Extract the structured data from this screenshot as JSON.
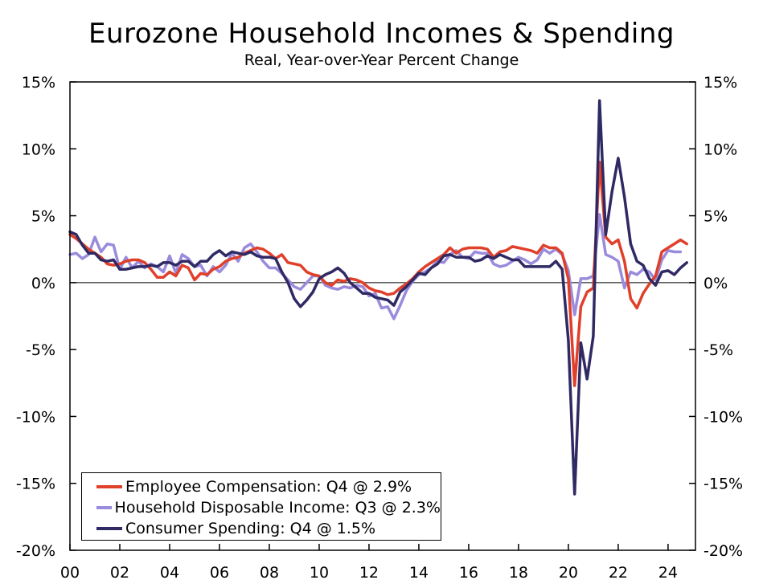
{
  "chart_data": {
    "type": "line",
    "title": "Eurozone Household Incomes & Spending",
    "subtitle": "Real, Year-over-Year Percent Change",
    "xlabel": "",
    "ylabel": "",
    "xlim": [
      2000,
      2025.1
    ],
    "ylim": [
      -20,
      15
    ],
    "y_ticks": [
      15,
      10,
      5,
      0,
      -5,
      -10,
      -15,
      -20
    ],
    "y_tick_labels": [
      "15%",
      "10%",
      "5%",
      "0%",
      "-5%",
      "-10%",
      "-15%",
      "-20%"
    ],
    "x_ticks": [
      2000,
      2002,
      2004,
      2006,
      2008,
      2010,
      2012,
      2014,
      2016,
      2018,
      2020,
      2022,
      2024
    ],
    "x_tick_labels": [
      "00",
      "02",
      "04",
      "06",
      "08",
      "10",
      "12",
      "14",
      "16",
      "18",
      "20",
      "22",
      "24"
    ],
    "legend_position": "bottom-left",
    "series": [
      {
        "name": "Employee Compensation",
        "legend_label": "Employee Compensation: Q4 @ 2.9%",
        "color": "#e0402a",
        "points": [
          [
            2000.0,
            3.6
          ],
          [
            2000.25,
            3.3
          ],
          [
            2000.5,
            2.9
          ],
          [
            2000.75,
            2.5
          ],
          [
            2001.0,
            2.2
          ],
          [
            2001.25,
            1.9
          ],
          [
            2001.5,
            1.4
          ],
          [
            2001.75,
            1.3
          ],
          [
            2002.0,
            1.4
          ],
          [
            2002.25,
            1.6
          ],
          [
            2002.5,
            1.7
          ],
          [
            2002.75,
            1.7
          ],
          [
            2003.0,
            1.5
          ],
          [
            2003.25,
            1.0
          ],
          [
            2003.5,
            0.4
          ],
          [
            2003.75,
            0.4
          ],
          [
            2004.0,
            0.8
          ],
          [
            2004.25,
            0.5
          ],
          [
            2004.5,
            1.3
          ],
          [
            2004.75,
            1.1
          ],
          [
            2005.0,
            0.2
          ],
          [
            2005.25,
            0.7
          ],
          [
            2005.5,
            0.6
          ],
          [
            2005.75,
            1.0
          ],
          [
            2006.0,
            1.2
          ],
          [
            2006.25,
            1.6
          ],
          [
            2006.5,
            1.8
          ],
          [
            2006.75,
            1.9
          ],
          [
            2007.0,
            2.2
          ],
          [
            2007.25,
            2.4
          ],
          [
            2007.5,
            2.6
          ],
          [
            2007.75,
            2.5
          ],
          [
            2008.0,
            2.2
          ],
          [
            2008.25,
            1.8
          ],
          [
            2008.5,
            2.1
          ],
          [
            2008.75,
            1.5
          ],
          [
            2009.0,
            1.4
          ],
          [
            2009.25,
            1.3
          ],
          [
            2009.5,
            0.8
          ],
          [
            2009.75,
            0.6
          ],
          [
            2010.0,
            0.5
          ],
          [
            2010.25,
            0.0
          ],
          [
            2010.5,
            -0.2
          ],
          [
            2010.75,
            0.2
          ],
          [
            2011.0,
            0.1
          ],
          [
            2011.25,
            0.3
          ],
          [
            2011.5,
            0.2
          ],
          [
            2011.75,
            0.0
          ],
          [
            2012.0,
            -0.4
          ],
          [
            2012.25,
            -0.6
          ],
          [
            2012.5,
            -0.7
          ],
          [
            2012.75,
            -0.9
          ],
          [
            2013.0,
            -0.8
          ],
          [
            2013.25,
            -0.4
          ],
          [
            2013.5,
            -0.1
          ],
          [
            2013.75,
            0.3
          ],
          [
            2014.0,
            0.8
          ],
          [
            2014.25,
            1.2
          ],
          [
            2014.5,
            1.5
          ],
          [
            2014.75,
            1.8
          ],
          [
            2015.0,
            2.1
          ],
          [
            2015.25,
            2.6
          ],
          [
            2015.5,
            2.2
          ],
          [
            2015.75,
            2.5
          ],
          [
            2016.0,
            2.6
          ],
          [
            2016.25,
            2.6
          ],
          [
            2016.5,
            2.6
          ],
          [
            2016.75,
            2.5
          ],
          [
            2017.0,
            1.9
          ],
          [
            2017.25,
            2.3
          ],
          [
            2017.5,
            2.4
          ],
          [
            2017.75,
            2.7
          ],
          [
            2018.0,
            2.6
          ],
          [
            2018.25,
            2.5
          ],
          [
            2018.5,
            2.4
          ],
          [
            2018.75,
            2.2
          ],
          [
            2019.0,
            2.8
          ],
          [
            2019.25,
            2.6
          ],
          [
            2019.5,
            2.6
          ],
          [
            2019.75,
            2.2
          ],
          [
            2020.0,
            0.3
          ],
          [
            2020.25,
            -7.7
          ],
          [
            2020.5,
            -1.8
          ],
          [
            2020.75,
            -0.7
          ],
          [
            2021.0,
            -0.4
          ],
          [
            2021.25,
            9.0
          ],
          [
            2021.5,
            3.4
          ],
          [
            2021.75,
            2.9
          ],
          [
            2022.0,
            3.2
          ],
          [
            2022.25,
            1.6
          ],
          [
            2022.5,
            -1.2
          ],
          [
            2022.75,
            -1.9
          ],
          [
            2023.0,
            -0.8
          ],
          [
            2023.25,
            -0.1
          ],
          [
            2023.5,
            0.5
          ],
          [
            2023.75,
            2.3
          ],
          [
            2024.0,
            2.6
          ],
          [
            2024.25,
            2.9
          ],
          [
            2024.5,
            3.2
          ],
          [
            2024.75,
            2.9
          ]
        ]
      },
      {
        "name": "Household Disposable Income",
        "legend_label": "Household Disposable Income: Q3 @ 2.3%",
        "color": "#9a8bdc",
        "points": [
          [
            2000.0,
            2.1
          ],
          [
            2000.25,
            2.2
          ],
          [
            2000.5,
            1.8
          ],
          [
            2000.75,
            2.1
          ],
          [
            2001.0,
            3.4
          ],
          [
            2001.25,
            2.3
          ],
          [
            2001.5,
            2.9
          ],
          [
            2001.75,
            2.8
          ],
          [
            2002.0,
            1.0
          ],
          [
            2002.25,
            1.9
          ],
          [
            2002.5,
            1.1
          ],
          [
            2002.75,
            1.6
          ],
          [
            2003.0,
            1.1
          ],
          [
            2003.25,
            1.4
          ],
          [
            2003.5,
            1.2
          ],
          [
            2003.75,
            0.8
          ],
          [
            2004.0,
            2.0
          ],
          [
            2004.25,
            0.7
          ],
          [
            2004.5,
            2.1
          ],
          [
            2004.75,
            1.8
          ],
          [
            2005.0,
            1.2
          ],
          [
            2005.25,
            1.3
          ],
          [
            2005.5,
            0.5
          ],
          [
            2005.75,
            1.2
          ],
          [
            2006.0,
            0.8
          ],
          [
            2006.25,
            1.3
          ],
          [
            2006.5,
            2.2
          ],
          [
            2006.75,
            1.6
          ],
          [
            2007.0,
            2.6
          ],
          [
            2007.25,
            2.9
          ],
          [
            2007.5,
            2.3
          ],
          [
            2007.75,
            1.6
          ],
          [
            2008.0,
            1.1
          ],
          [
            2008.25,
            1.1
          ],
          [
            2008.5,
            0.7
          ],
          [
            2008.75,
            0.2
          ],
          [
            2009.0,
            -0.3
          ],
          [
            2009.25,
            -0.5
          ],
          [
            2009.5,
            0.0
          ],
          [
            2009.75,
            0.5
          ],
          [
            2010.0,
            0.5
          ],
          [
            2010.25,
            -0.2
          ],
          [
            2010.5,
            -0.4
          ],
          [
            2010.75,
            -0.5
          ],
          [
            2011.0,
            -0.3
          ],
          [
            2011.25,
            -0.4
          ],
          [
            2011.5,
            -0.2
          ],
          [
            2011.75,
            -0.3
          ],
          [
            2012.0,
            -1.0
          ],
          [
            2012.25,
            -0.8
          ],
          [
            2012.5,
            -1.9
          ],
          [
            2012.75,
            -1.8
          ],
          [
            2013.0,
            -2.7
          ],
          [
            2013.25,
            -1.7
          ],
          [
            2013.5,
            -0.6
          ],
          [
            2013.75,
            0.1
          ],
          [
            2014.0,
            0.6
          ],
          [
            2014.25,
            0.8
          ],
          [
            2014.5,
            1.1
          ],
          [
            2014.75,
            1.6
          ],
          [
            2015.0,
            1.5
          ],
          [
            2015.25,
            2.1
          ],
          [
            2015.5,
            2.4
          ],
          [
            2015.75,
            1.9
          ],
          [
            2016.0,
            1.8
          ],
          [
            2016.25,
            2.3
          ],
          [
            2016.5,
            2.2
          ],
          [
            2016.75,
            2.2
          ],
          [
            2017.0,
            1.4
          ],
          [
            2017.25,
            1.2
          ],
          [
            2017.5,
            1.3
          ],
          [
            2017.75,
            1.6
          ],
          [
            2018.0,
            1.9
          ],
          [
            2018.25,
            1.7
          ],
          [
            2018.5,
            1.4
          ],
          [
            2018.75,
            1.7
          ],
          [
            2019.0,
            2.5
          ],
          [
            2019.25,
            2.2
          ],
          [
            2019.5,
            2.5
          ],
          [
            2019.75,
            2.1
          ],
          [
            2020.0,
            0.9
          ],
          [
            2020.25,
            -2.4
          ],
          [
            2020.5,
            0.3
          ],
          [
            2020.75,
            0.3
          ],
          [
            2021.0,
            0.5
          ],
          [
            2021.25,
            5.1
          ],
          [
            2021.5,
            2.1
          ],
          [
            2021.75,
            1.9
          ],
          [
            2022.0,
            1.6
          ],
          [
            2022.25,
            -0.4
          ],
          [
            2022.5,
            0.8
          ],
          [
            2022.75,
            0.6
          ],
          [
            2023.0,
            1.0
          ],
          [
            2023.25,
            0.8
          ],
          [
            2023.5,
            0.2
          ],
          [
            2023.75,
            1.7
          ],
          [
            2024.0,
            2.4
          ],
          [
            2024.25,
            2.3
          ],
          [
            2024.5,
            2.3
          ]
        ]
      },
      {
        "name": "Consumer Spending",
        "legend_label": "Consumer Spending: Q4 @ 1.5%",
        "color": "#2f2a63",
        "points": [
          [
            2000.0,
            3.8
          ],
          [
            2000.25,
            3.6
          ],
          [
            2000.5,
            2.8
          ],
          [
            2000.75,
            2.2
          ],
          [
            2001.0,
            2.2
          ],
          [
            2001.25,
            1.7
          ],
          [
            2001.5,
            1.6
          ],
          [
            2001.75,
            1.7
          ],
          [
            2002.0,
            1.0
          ],
          [
            2002.25,
            1.0
          ],
          [
            2002.5,
            1.1
          ],
          [
            2002.75,
            1.2
          ],
          [
            2003.0,
            1.2
          ],
          [
            2003.25,
            1.3
          ],
          [
            2003.5,
            1.2
          ],
          [
            2003.75,
            1.5
          ],
          [
            2004.0,
            1.5
          ],
          [
            2004.25,
            1.3
          ],
          [
            2004.5,
            1.6
          ],
          [
            2004.75,
            1.6
          ],
          [
            2005.0,
            1.2
          ],
          [
            2005.25,
            1.6
          ],
          [
            2005.5,
            1.6
          ],
          [
            2005.75,
            2.1
          ],
          [
            2006.0,
            2.4
          ],
          [
            2006.25,
            2.0
          ],
          [
            2006.5,
            2.3
          ],
          [
            2006.75,
            2.2
          ],
          [
            2007.0,
            2.1
          ],
          [
            2007.25,
            2.3
          ],
          [
            2007.5,
            2.0
          ],
          [
            2007.75,
            1.9
          ],
          [
            2008.0,
            1.9
          ],
          [
            2008.25,
            1.8
          ],
          [
            2008.5,
            0.8
          ],
          [
            2008.75,
            0.0
          ],
          [
            2009.0,
            -1.2
          ],
          [
            2009.25,
            -1.8
          ],
          [
            2009.5,
            -1.3
          ],
          [
            2009.75,
            -0.7
          ],
          [
            2010.0,
            0.3
          ],
          [
            2010.25,
            0.6
          ],
          [
            2010.5,
            0.8
          ],
          [
            2010.75,
            1.1
          ],
          [
            2011.0,
            0.7
          ],
          [
            2011.25,
            0.0
          ],
          [
            2011.5,
            -0.4
          ],
          [
            2011.75,
            -0.8
          ],
          [
            2012.0,
            -0.8
          ],
          [
            2012.25,
            -1.1
          ],
          [
            2012.5,
            -1.2
          ],
          [
            2012.75,
            -1.3
          ],
          [
            2013.0,
            -1.7
          ],
          [
            2013.25,
            -0.7
          ],
          [
            2013.5,
            -0.3
          ],
          [
            2013.75,
            0.2
          ],
          [
            2014.0,
            0.7
          ],
          [
            2014.25,
            0.6
          ],
          [
            2014.5,
            1.1
          ],
          [
            2014.75,
            1.4
          ],
          [
            2015.0,
            2.0
          ],
          [
            2015.25,
            2.1
          ],
          [
            2015.5,
            1.9
          ],
          [
            2015.75,
            1.9
          ],
          [
            2016.0,
            1.9
          ],
          [
            2016.25,
            1.6
          ],
          [
            2016.5,
            1.7
          ],
          [
            2016.75,
            2.0
          ],
          [
            2017.0,
            1.8
          ],
          [
            2017.25,
            2.1
          ],
          [
            2017.5,
            1.9
          ],
          [
            2017.75,
            1.7
          ],
          [
            2018.0,
            1.7
          ],
          [
            2018.25,
            1.2
          ],
          [
            2018.5,
            1.2
          ],
          [
            2018.75,
            1.2
          ],
          [
            2019.0,
            1.2
          ],
          [
            2019.25,
            1.2
          ],
          [
            2019.5,
            1.6
          ],
          [
            2019.75,
            1.0
          ],
          [
            2020.0,
            -4.3
          ],
          [
            2020.25,
            -15.8
          ],
          [
            2020.5,
            -4.5
          ],
          [
            2020.75,
            -7.2
          ],
          [
            2021.0,
            -4.0
          ],
          [
            2021.25,
            13.6
          ],
          [
            2021.5,
            3.6
          ],
          [
            2021.75,
            6.8
          ],
          [
            2022.0,
            9.3
          ],
          [
            2022.25,
            6.4
          ],
          [
            2022.5,
            2.9
          ],
          [
            2022.75,
            1.6
          ],
          [
            2023.0,
            1.3
          ],
          [
            2023.25,
            0.3
          ],
          [
            2023.5,
            -0.2
          ],
          [
            2023.75,
            0.8
          ],
          [
            2024.0,
            0.9
          ],
          [
            2024.25,
            0.6
          ],
          [
            2024.5,
            1.1
          ],
          [
            2024.75,
            1.5
          ]
        ]
      }
    ]
  }
}
